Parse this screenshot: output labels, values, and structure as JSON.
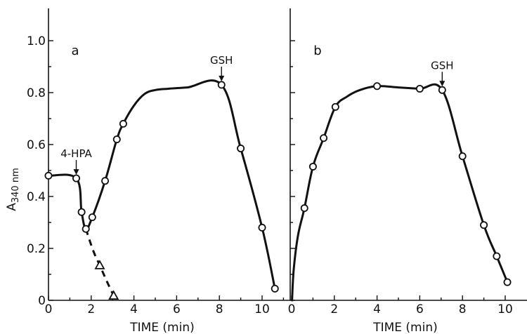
{
  "chart_data": [
    {
      "type": "line",
      "panel_label": "a",
      "xlabel": "TIME (min)",
      "ylabel_main": "A",
      "ylabel_sub": "340 nm",
      "xlim": [
        0,
        11
      ],
      "ylim": [
        0,
        1.1
      ],
      "xticks": [
        0,
        2,
        4,
        6,
        8,
        10
      ],
      "xtick_labels": [
        "0",
        "2",
        "4",
        "6",
        "8",
        "10"
      ],
      "yticks": [
        0,
        0.2,
        0.4,
        0.6,
        0.8,
        1.0
      ],
      "ytick_labels": [
        "0",
        "0.2",
        "0.4",
        "0.6",
        "0.8",
        "1.0"
      ],
      "series": [
        {
          "style": "solid",
          "marker": "circle",
          "points": [
            [
              0,
              0.48
            ],
            [
              1.3,
              0.47
            ],
            [
              1.55,
              0.34
            ],
            [
              1.75,
              0.275
            ],
            [
              2.05,
              0.32
            ],
            [
              2.65,
              0.46
            ],
            [
              3.2,
              0.62
            ],
            [
              3.5,
              0.68
            ],
            [
              8.1,
              0.83
            ],
            [
              9.0,
              0.585
            ],
            [
              10.0,
              0.28
            ],
            [
              10.6,
              0.045
            ]
          ],
          "curve_points": [
            [
              0,
              0.48
            ],
            [
              1.3,
              0.47
            ],
            [
              1.55,
              0.34
            ],
            [
              1.75,
              0.275
            ],
            [
              2.05,
              0.32
            ],
            [
              2.65,
              0.46
            ],
            [
              3.2,
              0.62
            ],
            [
              3.5,
              0.68
            ],
            [
              4.0,
              0.75
            ],
            [
              4.5,
              0.795
            ],
            [
              5.0,
              0.81
            ],
            [
              5.6,
              0.815
            ],
            [
              6.5,
              0.82
            ],
            [
              8.1,
              0.83
            ],
            [
              9.0,
              0.585
            ],
            [
              10.0,
              0.28
            ],
            [
              10.6,
              0.045
            ]
          ]
        },
        {
          "style": "dashed",
          "marker": "triangle",
          "points": [
            [
              2.4,
              0.135
            ],
            [
              3.05,
              0.018
            ]
          ],
          "curve_points": [
            [
              1.75,
              0.275
            ],
            [
              2.1,
              0.19
            ],
            [
              2.4,
              0.135
            ],
            [
              2.75,
              0.07
            ],
            [
              3.05,
              0.018
            ]
          ]
        }
      ],
      "annotations": [
        {
          "text": "4-HPA",
          "x": 1.3,
          "y": 0.47
        },
        {
          "text": "GSH",
          "x": 8.1,
          "y": 0.83
        }
      ]
    },
    {
      "type": "line",
      "panel_label": "b",
      "xlabel": "TIME (min)",
      "xlim": [
        0,
        11
      ],
      "ylim": [
        0,
        1.1
      ],
      "xticks": [
        0,
        2,
        4,
        6,
        8,
        10
      ],
      "xtick_labels": [
        "0",
        "2",
        "4",
        "6",
        "8",
        "10"
      ],
      "series": [
        {
          "style": "solid",
          "marker": "circle",
          "points": [
            [
              0.6,
              0.355
            ],
            [
              1.0,
              0.515
            ],
            [
              1.5,
              0.625
            ],
            [
              2.05,
              0.745
            ],
            [
              4.0,
              0.825
            ],
            [
              6.0,
              0.815
            ],
            [
              7.05,
              0.81
            ],
            [
              8.0,
              0.555
            ],
            [
              9.0,
              0.29
            ],
            [
              9.6,
              0.17
            ],
            [
              10.1,
              0.07
            ]
          ],
          "curve_points": [
            [
              0.02,
              0.0
            ],
            [
              0.1,
              0.12
            ],
            [
              0.3,
              0.25
            ],
            [
              0.6,
              0.355
            ],
            [
              1.0,
              0.515
            ],
            [
              1.5,
              0.625
            ],
            [
              2.05,
              0.745
            ],
            [
              2.6,
              0.785
            ],
            [
              3.2,
              0.81
            ],
            [
              4.0,
              0.825
            ],
            [
              5.0,
              0.82
            ],
            [
              6.0,
              0.815
            ],
            [
              7.05,
              0.81
            ],
            [
              8.0,
              0.555
            ],
            [
              9.0,
              0.29
            ],
            [
              9.6,
              0.17
            ],
            [
              10.1,
              0.07
            ]
          ]
        }
      ],
      "annotations": [
        {
          "text": "GSH",
          "x": 7.05,
          "y": 0.81
        }
      ]
    }
  ]
}
